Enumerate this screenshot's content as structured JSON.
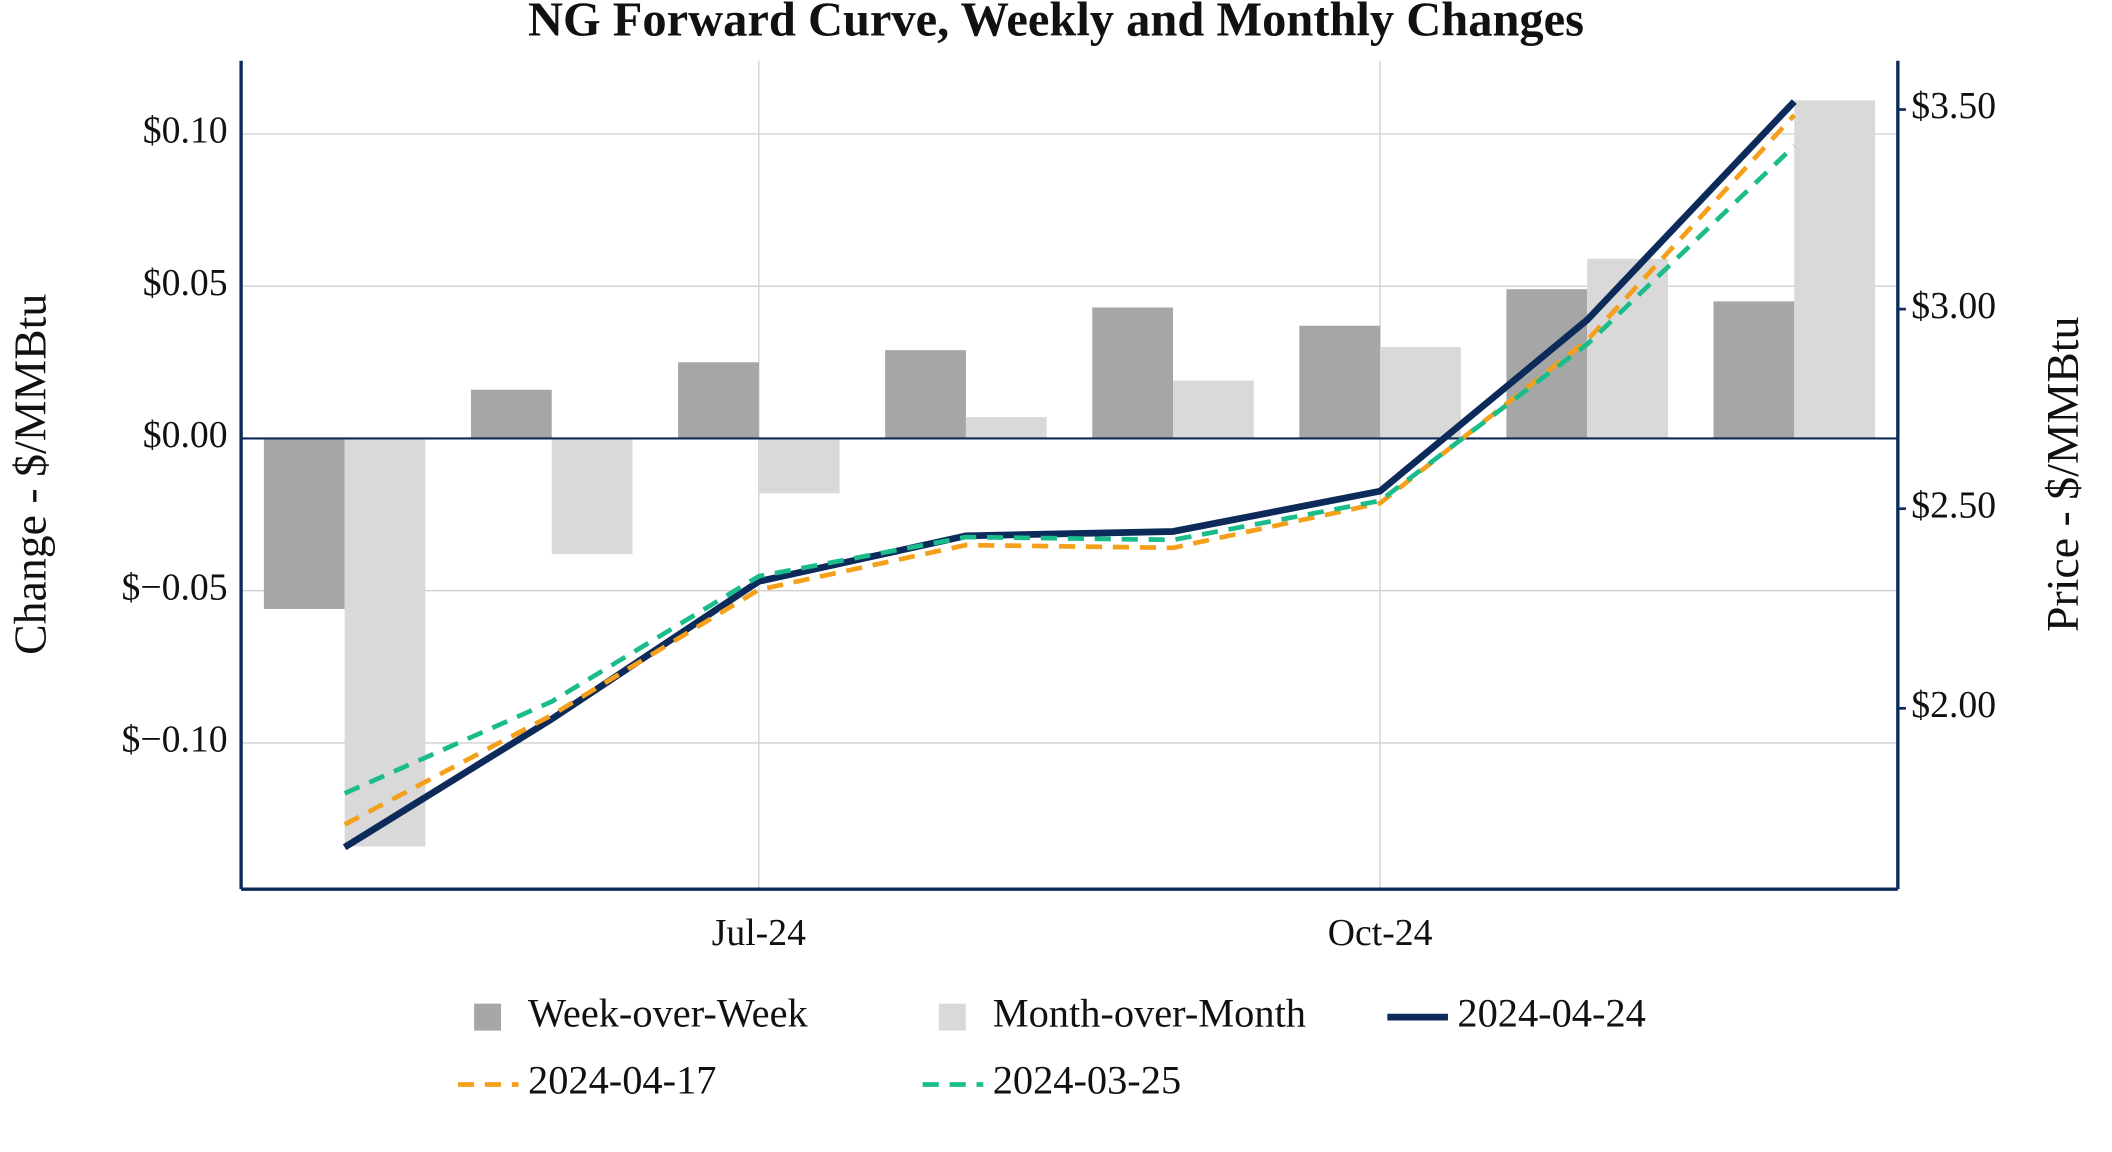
{
  "chart_data": {
    "type": "bar",
    "title": "NG Forward Curve, Weekly and Monthly Changes",
    "y_label": "Change - $/MMBtu",
    "y2_label": "Price - $/MMBtu",
    "categories": [
      null,
      null,
      "Jul-24",
      null,
      null,
      "Oct-24",
      null,
      null
    ],
    "ylim": [
      -0.148,
      0.124
    ],
    "yticks": [
      {
        "value": -0.1,
        "label": "$−0.10"
      },
      {
        "value": -0.05,
        "label": "$−0.05"
      },
      {
        "value": 0,
        "label": "$0.00"
      },
      {
        "value": 0.05,
        "label": "$0.05"
      },
      {
        "value": 0.1,
        "label": "$0.10"
      }
    ],
    "y2lim": [
      1.547,
      3.622
    ],
    "y2ticks": [
      {
        "value": 2,
        "label": "$2.00"
      },
      {
        "value": 2.5,
        "label": "$2.50"
      },
      {
        "value": 3,
        "label": "$3.00"
      },
      {
        "value": 3.5,
        "label": "$3.50"
      }
    ],
    "grid": true,
    "series": [
      {
        "name": "Week-over-Week",
        "type": "bar",
        "color": "#a6a6a6",
        "values": [
          -0.056,
          0.016,
          0.025,
          0.029,
          0.043,
          0.037,
          0.049,
          0.045
        ]
      },
      {
        "name": "Month-over-Month",
        "type": "bar",
        "color": "#d9d9d9",
        "values": [
          -0.134,
          -0.038,
          -0.018,
          0.007,
          0.019,
          0.03,
          0.059,
          0.111
        ]
      },
      {
        "name": "2024-04-24",
        "type": "line",
        "axis": "y2",
        "color": "#0d2b5a",
        "dashed": false,
        "values": [
          1.652,
          1.973,
          2.318,
          2.432,
          2.443,
          2.544,
          2.973,
          3.52
        ]
      },
      {
        "name": "2024-04-17",
        "type": "line",
        "axis": "y2",
        "color": "#f5a01a",
        "dashed": true,
        "values": [
          1.709,
          1.983,
          2.297,
          2.409,
          2.402,
          2.514,
          2.922,
          3.486
        ]
      },
      {
        "name": "2024-03-25",
        "type": "line",
        "axis": "y2",
        "color": "#1abc8c",
        "dashed": true,
        "values": [
          1.787,
          2.017,
          2.331,
          2.429,
          2.422,
          2.52,
          2.912,
          3.409
        ]
      }
    ]
  }
}
